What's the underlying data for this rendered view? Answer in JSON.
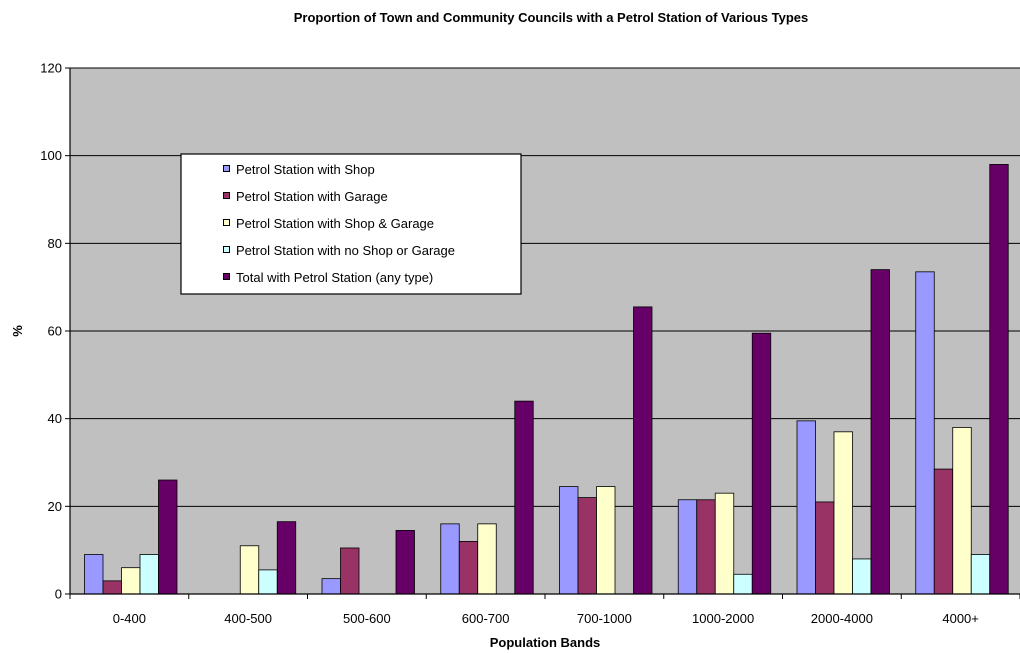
{
  "chart_data": {
    "type": "bar",
    "title": "Proportion of Town and Community Councils with a Petrol Station of Various Types",
    "xlabel": "Population Bands",
    "ylabel": "%",
    "ylim": [
      0,
      120
    ],
    "yticks": [
      0,
      20,
      40,
      60,
      80,
      100,
      120
    ],
    "grid": true,
    "plot_background": "#c0c0c0",
    "legend_position": "upper-left inside plot",
    "categories": [
      "0-400",
      "400-500",
      "500-600",
      "600-700",
      "700-1000",
      "1000-2000",
      "2000-4000",
      "4000+"
    ],
    "series": [
      {
        "name": "Petrol Station with Shop",
        "color": "#9999ff",
        "values": [
          9,
          0,
          3.5,
          16,
          24.5,
          21.5,
          39.5,
          73.5
        ]
      },
      {
        "name": "Petrol Station with Garage",
        "color": "#993366",
        "values": [
          3,
          0,
          10.5,
          12,
          22,
          21.5,
          21,
          28.5
        ]
      },
      {
        "name": "Petrol Station with Shop & Garage",
        "color": "#ffffcc",
        "values": [
          6,
          11,
          0,
          16,
          24.5,
          23,
          37,
          38
        ]
      },
      {
        "name": "Petrol Station with no Shop or Garage",
        "color": "#ccffff",
        "values": [
          9,
          5.5,
          0,
          0,
          0,
          4.5,
          8,
          9
        ]
      },
      {
        "name": "Total with Petrol Station (any type)",
        "color": "#660066",
        "values": [
          26,
          16.5,
          14.5,
          44,
          65.5,
          59.5,
          74,
          98
        ]
      }
    ]
  }
}
